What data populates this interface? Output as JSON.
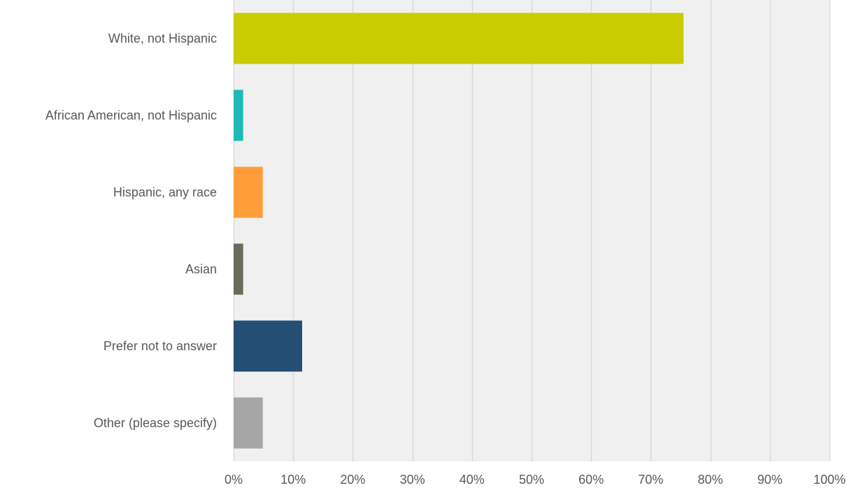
{
  "chart_data": {
    "type": "bar",
    "orientation": "horizontal",
    "categories": [
      "White, not Hispanic",
      "African American, not Hispanic",
      "Hispanic, any race",
      "Asian",
      "Prefer not to answer",
      "Other (please specify)"
    ],
    "values": [
      75.5,
      1.6,
      4.9,
      1.6,
      11.5,
      4.9
    ],
    "colors": [
      "#c8cc00",
      "#1ebab6",
      "#ff9d3a",
      "#6a6b5b",
      "#254e75",
      "#a6a6a6"
    ],
    "xlim": [
      0,
      100
    ],
    "xticks": [
      "0%",
      "10%",
      "20%",
      "30%",
      "40%",
      "50%",
      "60%",
      "70%",
      "80%",
      "90%",
      "100%"
    ],
    "grid": true,
    "legend": "none",
    "plot_background": "#f0f0f0",
    "gridline_color": "#d9d9d9"
  }
}
